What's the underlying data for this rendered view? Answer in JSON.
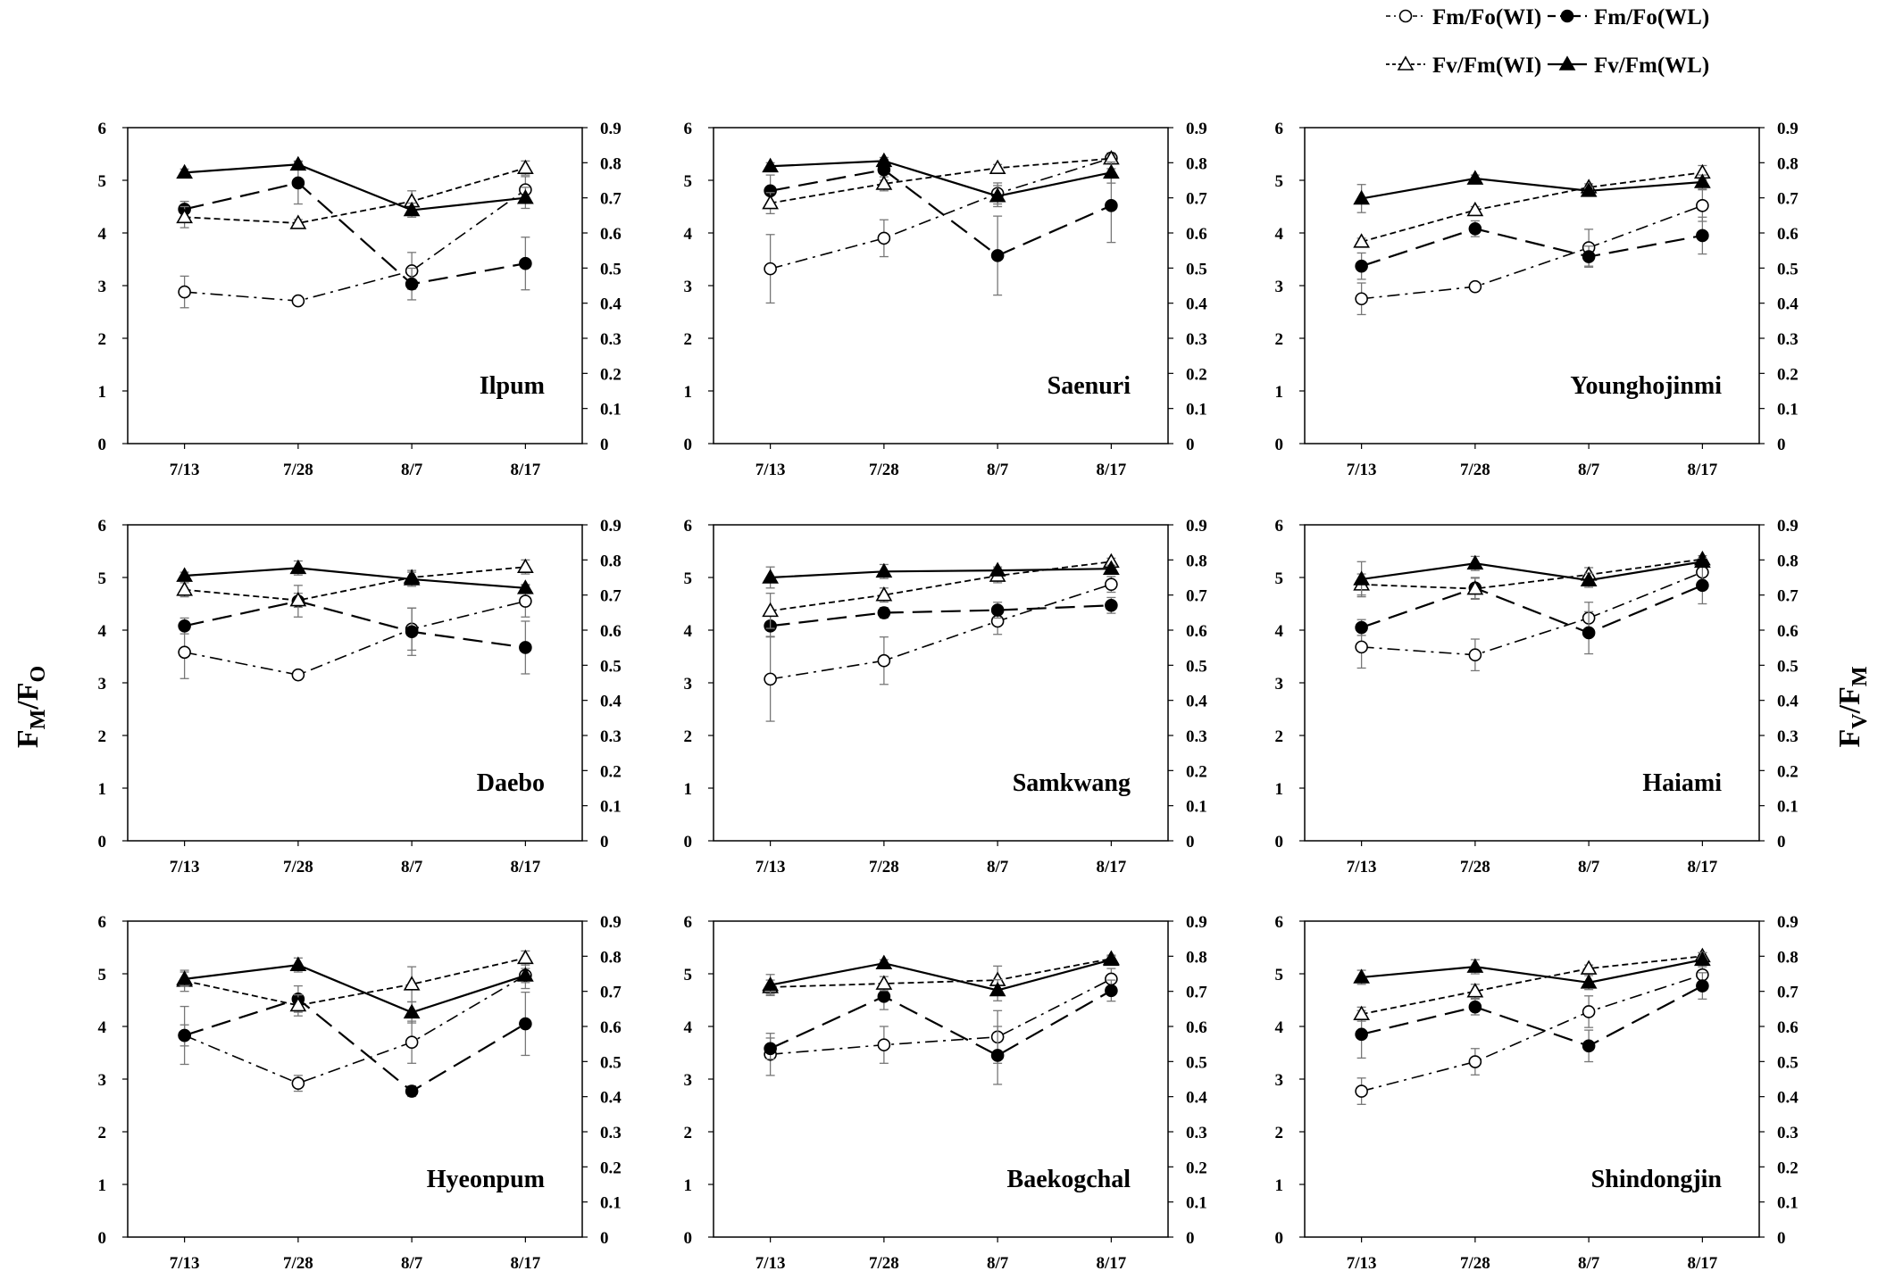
{
  "chart_data": {
    "type": "line",
    "legend": [
      {
        "key": "fmfo_wi",
        "label": "Fm/Fo(WI)"
      },
      {
        "key": "fmfo_wl",
        "label": "Fm/Fo(WL)"
      },
      {
        "key": "fvfm_wi",
        "label": "Fv/Fm(WI)"
      },
      {
        "key": "fvfm_wl",
        "label": "Fv/Fm(WL)"
      }
    ],
    "left_axis": {
      "title_main": "F",
      "title_sub1": "M",
      "title_slash": "/F",
      "title_sub2": "O",
      "ylim": [
        0,
        6
      ],
      "ticks": [
        "0",
        "1",
        "2",
        "3",
        "4",
        "5",
        "6"
      ]
    },
    "right_axis": {
      "title_main": "F",
      "title_sub1": "V",
      "title_slash": "/F",
      "title_sub2": "M",
      "ylim": [
        0,
        0.9
      ],
      "ticks": [
        "0",
        "0.1",
        "0.2",
        "0.3",
        "0.4",
        "0.5",
        "0.6",
        "0.7",
        "0.8",
        "0.9"
      ]
    },
    "categories": [
      "7/13",
      "7/28",
      "8/7",
      "8/17"
    ],
    "panels": [
      {
        "title": "Ilpum",
        "fmfo_wi": [
          2.88,
          2.71,
          3.28,
          4.82
        ],
        "fmfo_wi_err": [
          0.3,
          0.05,
          0.35,
          0.25
        ],
        "fmfo_wl": [
          4.45,
          4.95,
          3.03,
          3.42
        ],
        "fmfo_wl_err": [
          0.15,
          0.4,
          0.3,
          0.5
        ],
        "fvfm_wi": [
          0.645,
          0.628,
          0.69,
          0.785
        ],
        "fvfm_wi_err": [
          0.03,
          0.01,
          0.03,
          0.02
        ],
        "fvfm_wl": [
          0.772,
          0.795,
          0.665,
          0.7
        ],
        "fvfm_wl_err": [
          0.01,
          0.01,
          0.02,
          0.03
        ]
      },
      {
        "title": "Saenuri",
        "fmfo_wi": [
          3.32,
          3.9,
          4.75,
          5.42
        ],
        "fmfo_wi_err": [
          0.65,
          0.35,
          0.2,
          0.1
        ],
        "fmfo_wl": [
          4.8,
          5.2,
          3.57,
          4.52
        ],
        "fmfo_wl_err": [
          0.3,
          0.2,
          0.75,
          0.7
        ],
        "fvfm_wi": [
          0.685,
          0.74,
          0.785,
          0.812
        ],
        "fvfm_wi_err": [
          0.03,
          0.02,
          0.01,
          0.01
        ],
        "fvfm_wl": [
          0.79,
          0.805,
          0.705,
          0.772
        ],
        "fvfm_wl_err": [
          0.01,
          0.01,
          0.03,
          0.03
        ]
      },
      {
        "title": "Younghojinmi",
        "fmfo_wi": [
          2.75,
          2.98,
          3.72,
          4.52
        ],
        "fmfo_wi_err": [
          0.3,
          0.05,
          0.35,
          0.3
        ],
        "fmfo_wl": [
          3.37,
          4.08,
          3.55,
          3.95
        ],
        "fmfo_wl_err": [
          0.25,
          0.15,
          0.2,
          0.35
        ],
        "fvfm_wi": [
          0.575,
          0.665,
          0.73,
          0.772
        ],
        "fvfm_wi_err": [
          0.01,
          0.01,
          0.01,
          0.02
        ],
        "fvfm_wl": [
          0.698,
          0.755,
          0.72,
          0.745
        ],
        "fvfm_wl_err": [
          0.04,
          0.01,
          0.01,
          0.02
        ]
      },
      {
        "title": "Daebo",
        "fmfo_wi": [
          3.58,
          3.15,
          4.02,
          4.55
        ],
        "fmfo_wi_err": [
          0.5,
          0.05,
          0.4,
          0.3
        ],
        "fmfo_wl": [
          4.08,
          4.55,
          3.97,
          3.67
        ],
        "fmfo_wl_err": [
          0.15,
          0.3,
          0.45,
          0.5
        ],
        "fvfm_wi": [
          0.715,
          0.685,
          0.75,
          0.78
        ],
        "fvfm_wi_err": [
          0.02,
          0.02,
          0.02,
          0.02
        ],
        "fvfm_wl": [
          0.755,
          0.777,
          0.745,
          0.72
        ],
        "fvfm_wl_err": [
          0.01,
          0.02,
          0.02,
          0.01
        ]
      },
      {
        "title": "Samkwang",
        "fmfo_wi": [
          3.07,
          3.42,
          4.17,
          4.87
        ],
        "fmfo_wi_err": [
          0.8,
          0.45,
          0.25,
          0.15
        ],
        "fmfo_wl": [
          4.08,
          4.33,
          4.38,
          4.47
        ],
        "fmfo_wl_err": [
          0.2,
          0.1,
          0.15,
          0.15
        ],
        "fvfm_wi": [
          0.655,
          0.7,
          0.755,
          0.795
        ],
        "fvfm_wi_err": [
          0.05,
          0.02,
          0.02,
          0.01
        ],
        "fvfm_wl": [
          0.75,
          0.767,
          0.77,
          0.775
        ],
        "fvfm_wl_err": [
          0.03,
          0.02,
          0.01,
          0.01
        ]
      },
      {
        "title": "Haiami",
        "fmfo_wi": [
          3.68,
          3.53,
          4.23,
          5.1
        ],
        "fmfo_wi_err": [
          0.4,
          0.3,
          0.3,
          0.2
        ],
        "fmfo_wl": [
          4.05,
          4.8,
          3.95,
          4.85
        ],
        "fmfo_wl_err": [
          0.15,
          0.2,
          0.4,
          0.35
        ],
        "fvfm_wi": [
          0.73,
          0.718,
          0.758,
          0.802
        ],
        "fvfm_wi_err": [
          0.03,
          0.03,
          0.02,
          0.01
        ],
        "fvfm_wl": [
          0.745,
          0.79,
          0.742,
          0.795
        ],
        "fvfm_wl_err": [
          0.05,
          0.02,
          0.02,
          0.01
        ]
      },
      {
        "title": "Hyeonpum",
        "fmfo_wi": [
          3.83,
          2.92,
          3.7,
          4.97
        ],
        "fmfo_wi_err": [
          0.55,
          0.15,
          0.4,
          0.25
        ],
        "fmfo_wl": [
          3.83,
          4.52,
          2.77,
          4.05
        ],
        "fmfo_wl_err": [
          0.2,
          0.25,
          0.1,
          0.6
        ],
        "fvfm_wi": [
          0.73,
          0.66,
          0.72,
          0.795
        ],
        "fvfm_wi_err": [
          0.03,
          0.03,
          0.05,
          0.02
        ],
        "fvfm_wl": [
          0.735,
          0.775,
          0.64,
          0.745
        ],
        "fvfm_wl_err": [
          0.02,
          0.02,
          0.03,
          0.02
        ]
      },
      {
        "title": "Baekogchal",
        "fmfo_wi": [
          3.47,
          3.65,
          3.8,
          4.9
        ],
        "fmfo_wi_err": [
          0.4,
          0.35,
          0.5,
          0.2
        ],
        "fmfo_wl": [
          3.58,
          4.57,
          3.45,
          4.68
        ],
        "fmfo_wl_err": [
          0.2,
          0.25,
          0.55,
          0.2
        ],
        "fvfm_wi": [
          0.712,
          0.722,
          0.732,
          0.793
        ],
        "fvfm_wi_err": [
          0.02,
          0.02,
          0.04,
          0.01
        ],
        "fvfm_wl": [
          0.718,
          0.78,
          0.703,
          0.79
        ],
        "fvfm_wl_err": [
          0.03,
          0.01,
          0.03,
          0.01
        ]
      },
      {
        "title": "Shindongjin",
        "fmfo_wi": [
          2.77,
          3.33,
          4.28,
          4.98
        ],
        "fmfo_wi_err": [
          0.25,
          0.25,
          0.3,
          0.2
        ],
        "fmfo_wl": [
          3.85,
          4.37,
          3.63,
          4.77
        ],
        "fmfo_wl_err": [
          0.45,
          0.15,
          0.3,
          0.25
        ],
        "fvfm_wi": [
          0.635,
          0.7,
          0.765,
          0.8
        ],
        "fvfm_wi_err": [
          0.02,
          0.02,
          0.01,
          0.01
        ],
        "fvfm_wl": [
          0.74,
          0.77,
          0.725,
          0.79
        ],
        "fvfm_wl_err": [
          0.02,
          0.02,
          0.02,
          0.02
        ]
      }
    ]
  }
}
